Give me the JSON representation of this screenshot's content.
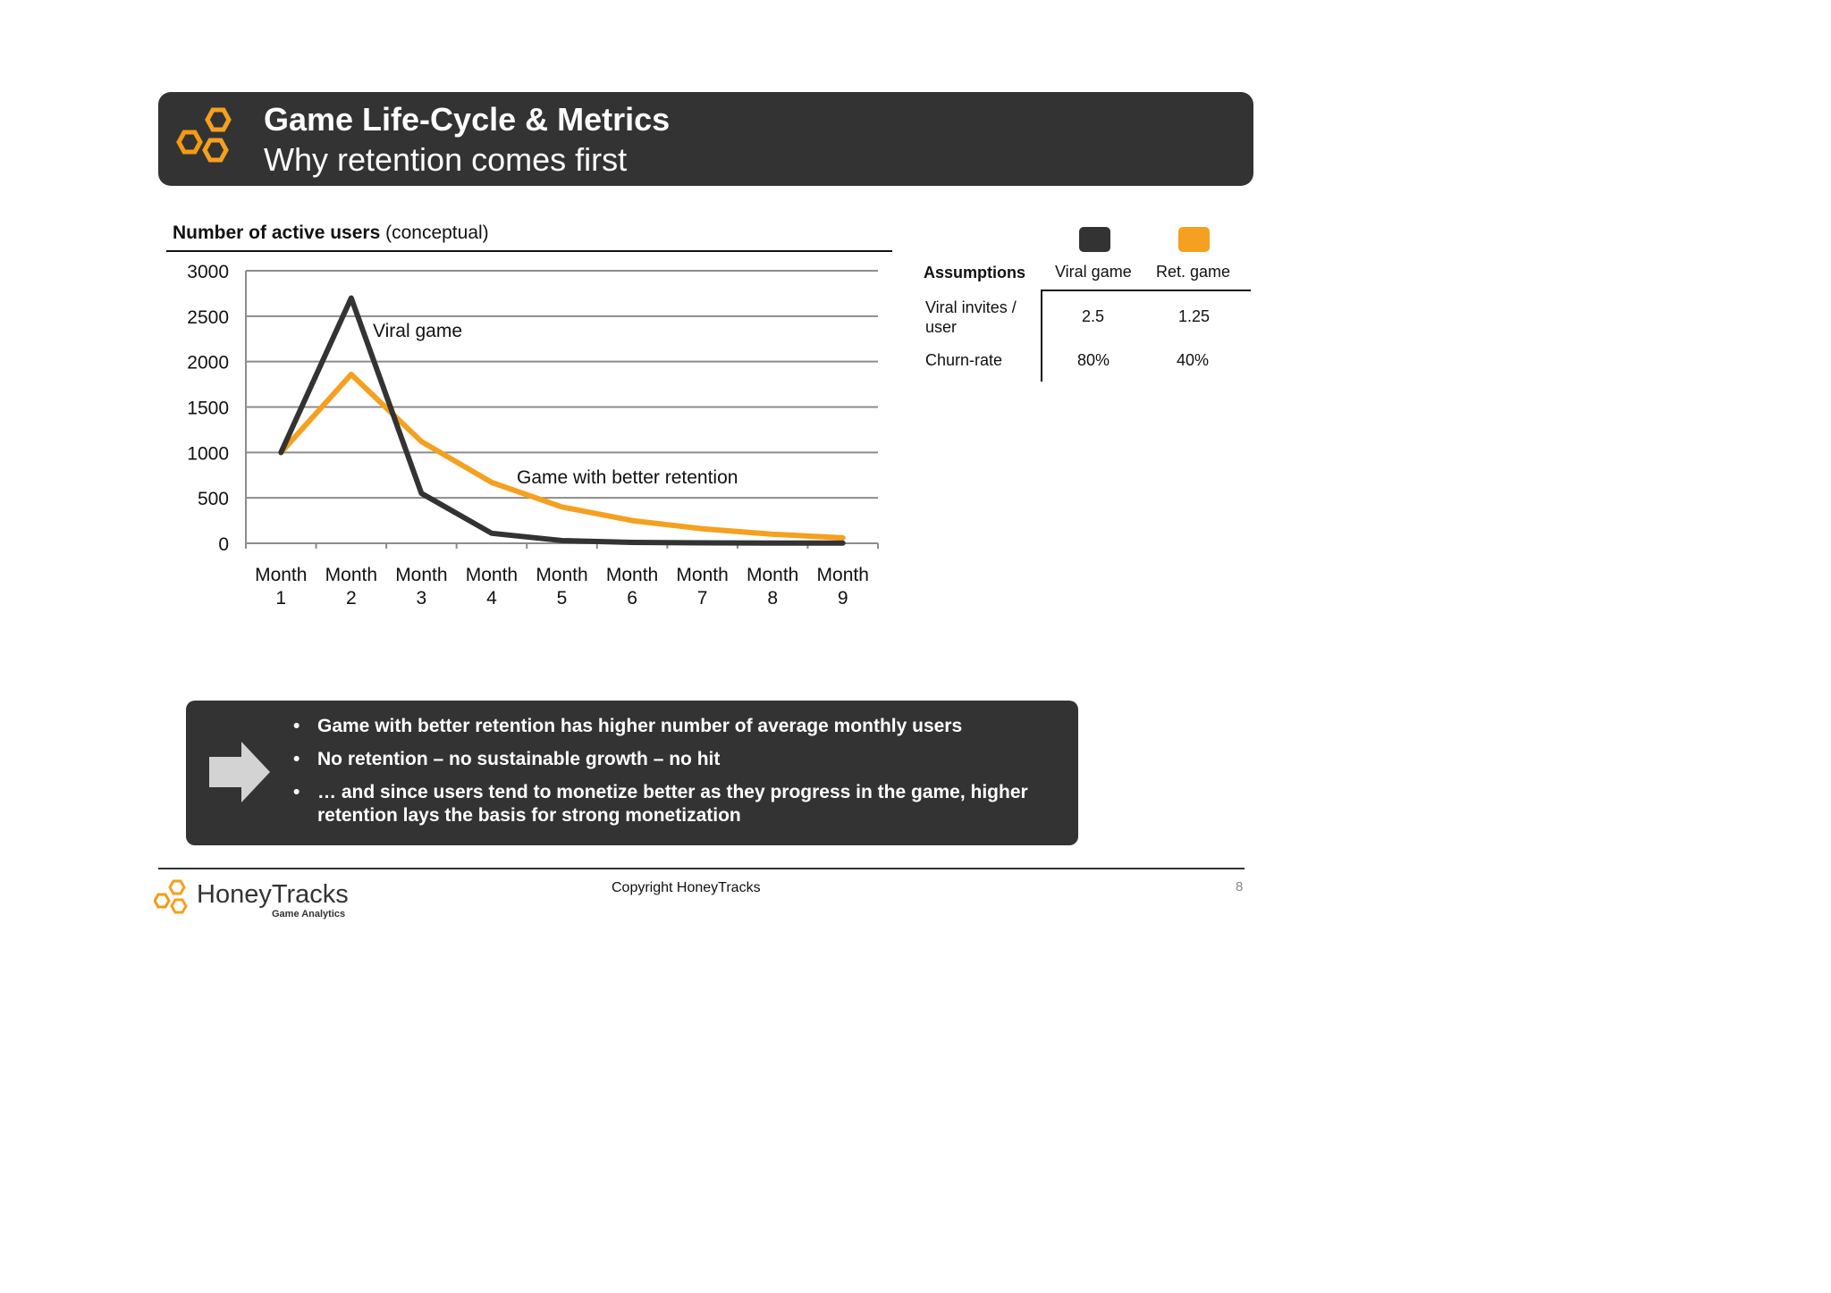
{
  "header": {
    "title": "Game Life-Cycle & Metrics",
    "subtitle": "Why retention comes first"
  },
  "chart_heading": {
    "bold": "Number of active users",
    "rest": " (conceptual)"
  },
  "chart_data": {
    "type": "line",
    "title": "Number of active users (conceptual)",
    "categories": [
      "Month 1",
      "Month 2",
      "Month 3",
      "Month 4",
      "Month 5",
      "Month 6",
      "Month 7",
      "Month 8",
      "Month 9"
    ],
    "yticks": [
      0,
      500,
      1000,
      1500,
      2000,
      2500,
      3000
    ],
    "ylim": [
      0,
      3000
    ],
    "grid": true,
    "series": [
      {
        "name": "Viral game",
        "color": "#333333",
        "values": [
          1000,
          2700,
          550,
          110,
          30,
          10,
          5,
          3,
          2
        ]
      },
      {
        "name": "Game with better retention",
        "color": "#f5a01f",
        "values": [
          1000,
          1860,
          1120,
          670,
          400,
          250,
          160,
          100,
          60
        ]
      }
    ]
  },
  "assumptions": {
    "heading": "Assumptions",
    "columns": [
      "Viral game",
      "Ret. game"
    ],
    "column_colors": [
      "#333333",
      "#f5a01f"
    ],
    "rows": [
      {
        "label": "Viral invites / user",
        "values": [
          "2.5",
          "1.25"
        ]
      },
      {
        "label": "Churn-rate",
        "values": [
          "80%",
          "40%"
        ]
      }
    ]
  },
  "callout": {
    "bullets": [
      "Game with better retention has higher number of average monthly users",
      "No retention – no sustainable growth – no hit",
      "… and since users tend to monetize better as they progress in the game, higher retention lays the basis for strong monetization"
    ]
  },
  "footer": {
    "copyright": "Copyright HoneyTracks",
    "page": "8",
    "brand_name": "HoneyTracks",
    "brand_sub": "Game Analytics"
  }
}
